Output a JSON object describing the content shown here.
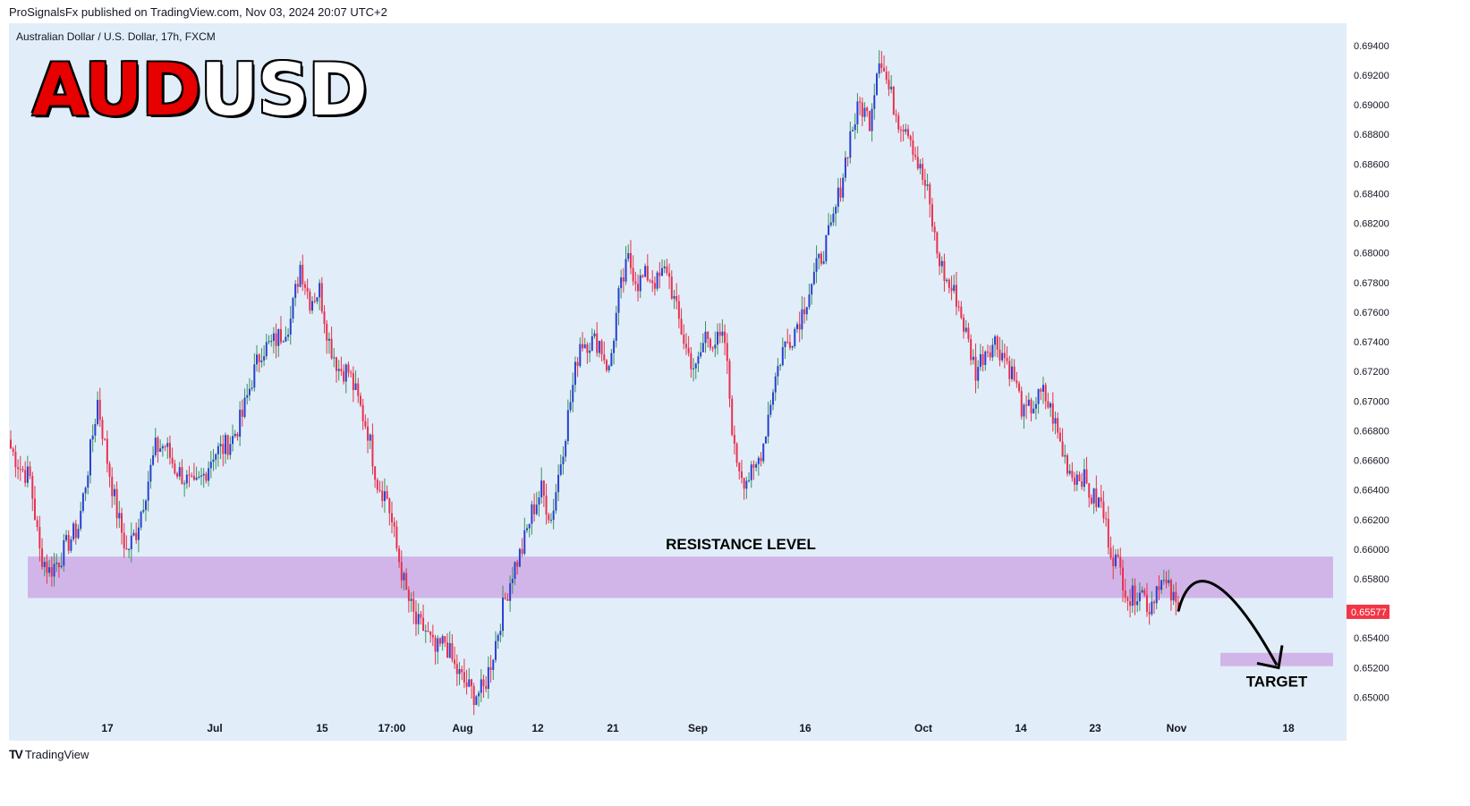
{
  "header": {
    "published_line": "ProSignalsFx published on TradingView.com, Nov 03, 2024 20:07 UTC+2"
  },
  "symbol_info": "Australian Dollar / U.S. Dollar, 17h, FXCM",
  "big_title": {
    "part1": "AUD",
    "part2": "USD"
  },
  "annotations": {
    "resistance_label": "RESISTANCE LEVEL",
    "target_label": "TARGET"
  },
  "price_badge": "0.65577",
  "footer": {
    "brand": "TradingView",
    "logo_icon": "tradingview-logo-icon"
  },
  "colors": {
    "background": "#e1eef9",
    "up": "#2a3fd1",
    "down": "#e8314f",
    "zone": "#cfaee6",
    "badge": "#f23645"
  },
  "chart_data": {
    "type": "candlestick",
    "y_ticks": [
      "0.69400",
      "0.69200",
      "0.69000",
      "0.68800",
      "0.68600",
      "0.68400",
      "0.68200",
      "0.68000",
      "0.67800",
      "0.67600",
      "0.67400",
      "0.67200",
      "0.67000",
      "0.66800",
      "0.66600",
      "0.66400",
      "0.66200",
      "0.66000",
      "0.65800",
      "0.65400",
      "0.65200",
      "0.65000"
    ],
    "ylim": [
      0.6487,
      0.6955
    ],
    "x_tick_labels": [
      "17",
      "Jul",
      "15",
      "17:00",
      "Aug",
      "12",
      "21",
      "Sep",
      "16",
      "Oct",
      "14",
      "23",
      "Nov",
      "18"
    ],
    "last_price": 0.65577,
    "resistance_zone": [
      0.6567,
      0.6595
    ],
    "target_zone": [
      0.6521,
      0.653
    ],
    "price_path": [
      0.6668,
      0.6655,
      0.6648,
      0.6598,
      0.6585,
      0.6593,
      0.6605,
      0.6615,
      0.6655,
      0.67,
      0.666,
      0.6625,
      0.6598,
      0.6612,
      0.664,
      0.6668,
      0.667,
      0.6655,
      0.6648,
      0.664,
      0.665,
      0.6665,
      0.6668,
      0.6675,
      0.669,
      0.6715,
      0.6735,
      0.6738,
      0.6745,
      0.6755,
      0.6792,
      0.6768,
      0.6775,
      0.674,
      0.6722,
      0.672,
      0.67,
      0.668,
      0.6645,
      0.6635,
      0.66,
      0.657,
      0.655,
      0.6545,
      0.653,
      0.6538,
      0.652,
      0.651,
      0.6502,
      0.6505,
      0.653,
      0.656,
      0.6585,
      0.66,
      0.6625,
      0.664,
      0.662,
      0.666,
      0.67,
      0.674,
      0.674,
      0.674,
      0.672,
      0.677,
      0.6795,
      0.678,
      0.6785,
      0.678,
      0.679,
      0.676,
      0.6735,
      0.672,
      0.6745,
      0.674,
      0.674,
      0.6665,
      0.6648,
      0.665,
      0.6672,
      0.671,
      0.6735,
      0.6745,
      0.676,
      0.678,
      0.6798,
      0.6815,
      0.6845,
      0.688,
      0.69,
      0.689,
      0.6935,
      0.691,
      0.689,
      0.6885,
      0.686,
      0.684,
      0.68,
      0.678,
      0.677,
      0.6745,
      0.672,
      0.6735,
      0.674,
      0.673,
      0.6715,
      0.669,
      0.6698,
      0.6705,
      0.669,
      0.6665,
      0.665,
      0.665,
      0.6635,
      0.663,
      0.66,
      0.6585,
      0.6565,
      0.6575,
      0.656,
      0.658,
      0.6572,
      0.6558
    ]
  }
}
